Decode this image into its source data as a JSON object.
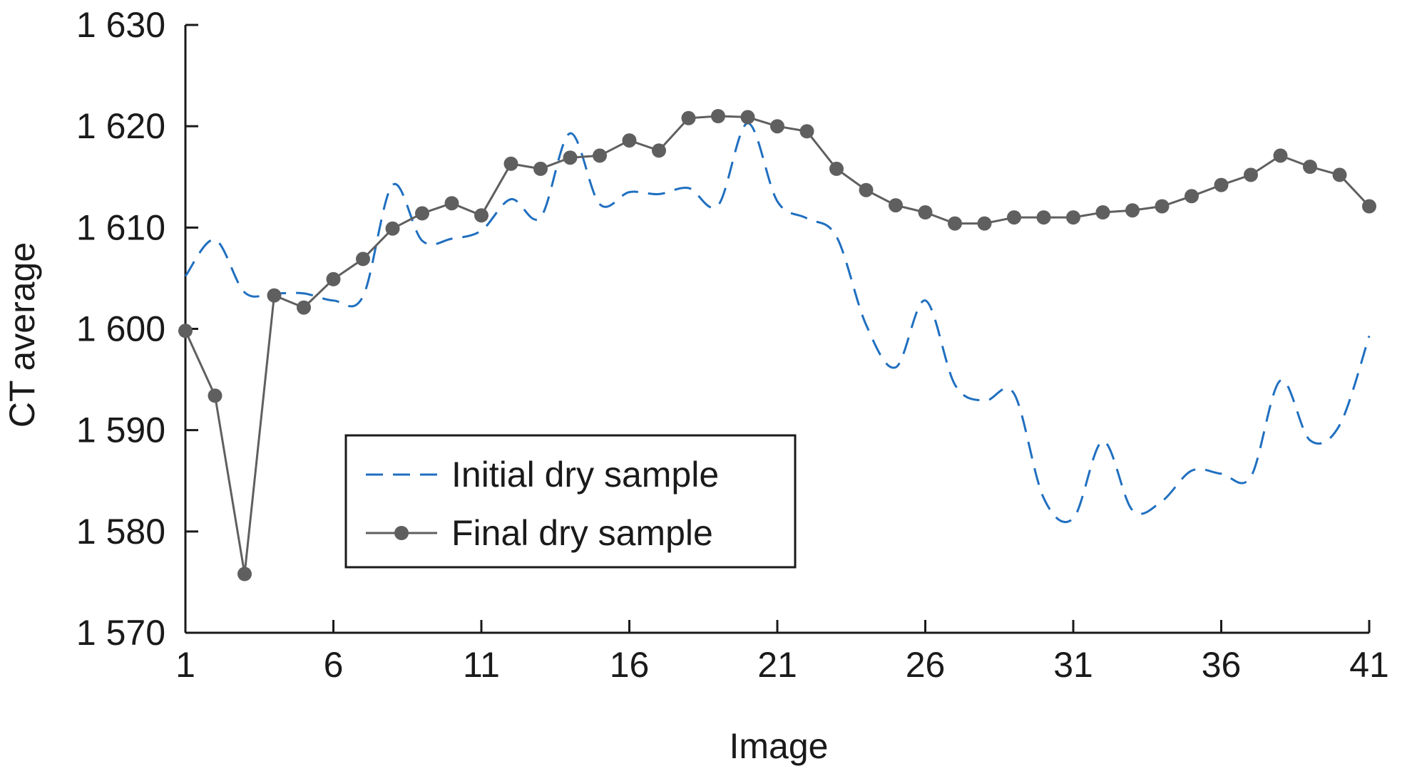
{
  "chart_data": {
    "type": "line",
    "xlabel": "Image",
    "ylabel": "CT average",
    "xlim": [
      1,
      41
    ],
    "ylim": [
      1570,
      1630
    ],
    "x_ticks": [
      1,
      6,
      11,
      16,
      21,
      26,
      31,
      36,
      41
    ],
    "y_ticks": [
      1570,
      1580,
      1590,
      1600,
      1610,
      1620,
      1630
    ],
    "x_tick_labels": [
      "1",
      "6",
      "11",
      "16",
      "21",
      "26",
      "31",
      "36",
      "41"
    ],
    "y_tick_labels": [
      "1 570",
      "1 580",
      "1 590",
      "1 600",
      "1 610",
      "1 620",
      "1 630"
    ],
    "grid": false,
    "legend_position": "lower-left",
    "x": [
      1,
      2,
      3,
      4,
      5,
      6,
      7,
      8,
      9,
      10,
      11,
      12,
      13,
      14,
      15,
      16,
      17,
      18,
      19,
      20,
      21,
      22,
      23,
      24,
      25,
      26,
      27,
      28,
      29,
      30,
      31,
      32,
      33,
      34,
      35,
      36,
      37,
      38,
      39,
      40,
      41
    ],
    "series": [
      {
        "name": "Initial dry sample",
        "style": "dashed",
        "color": "#1f6fc0",
        "values": [
          1605.2,
          1608.8,
          1603.6,
          1603.5,
          1603.5,
          1602.8,
          1603.2,
          1614.2,
          1608.7,
          1608.9,
          1609.7,
          1612.8,
          1611.0,
          1619.3,
          1612.3,
          1613.5,
          1613.3,
          1613.9,
          1612.2,
          1620.3,
          1612.6,
          1610.9,
          1609.1,
          1600.4,
          1596.2,
          1602.8,
          1594.5,
          1592.9,
          1593.6,
          1583.3,
          1581.3,
          1588.9,
          1582.1,
          1583.0,
          1586.0,
          1585.7,
          1585.4,
          1594.9,
          1589.0,
          1590.5,
          1599.3
        ]
      },
      {
        "name": "Final dry sample",
        "style": "solid-markers",
        "color": "#5f5f5f",
        "values": [
          1599.8,
          1593.4,
          1575.8,
          1603.3,
          1602.1,
          1604.9,
          1606.9,
          1609.9,
          1611.4,
          1612.4,
          1611.2,
          1616.3,
          1615.8,
          1616.9,
          1617.1,
          1618.6,
          1617.6,
          1620.8,
          1621.0,
          1620.9,
          1620.0,
          1619.5,
          1615.8,
          1613.7,
          1612.2,
          1611.5,
          1610.4,
          1610.4,
          1611.0,
          1611.0,
          1611.0,
          1611.5,
          1611.7,
          1612.1,
          1613.1,
          1614.2,
          1615.2,
          1617.1,
          1616.0,
          1615.2,
          1612.1
        ]
      }
    ]
  }
}
